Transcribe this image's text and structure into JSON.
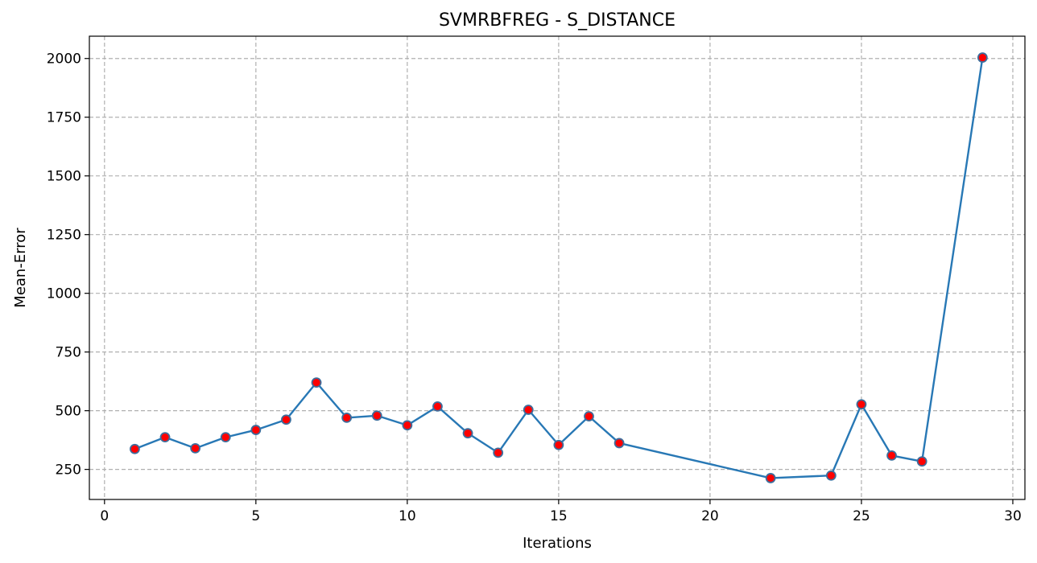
{
  "chart_data": {
    "type": "line",
    "title": "SVMRBFREG - S_DISTANCE",
    "xlabel": "Iterations",
    "ylabel": "Mean-Error",
    "xlim": [
      -0.5,
      30.4
    ],
    "ylim": [
      122,
      2095
    ],
    "xticks": [
      0,
      5,
      10,
      15,
      20,
      25,
      30
    ],
    "yticks": [
      250,
      500,
      750,
      1000,
      1250,
      1500,
      1750,
      2000
    ],
    "grid": true,
    "series": [
      {
        "x": [
          1,
          2,
          3,
          4,
          5,
          6,
          7,
          8,
          9,
          10,
          11,
          12,
          13,
          14,
          15,
          16,
          17,
          22,
          24,
          25,
          26,
          27,
          29
        ],
        "y": [
          337,
          387,
          340,
          387,
          418,
          462,
          620,
          470,
          479,
          438,
          518,
          404,
          321,
          504,
          354,
          476,
          362,
          213,
          224,
          527,
          309,
          284,
          2004
        ]
      }
    ],
    "colors": {
      "line": "#2878b5",
      "marker_fill": "#ff0000",
      "marker_edge": "#3e6e9c",
      "grid": "#b0b0b0",
      "axes": "#000000"
    }
  }
}
